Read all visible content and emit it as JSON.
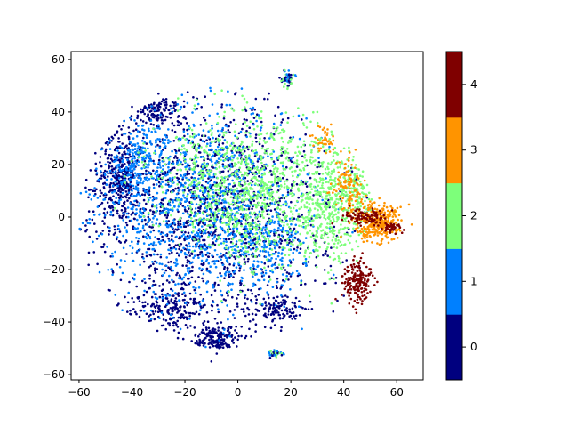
{
  "chart_data": {
    "type": "scatter",
    "title": "",
    "xlabel": "",
    "ylabel": "",
    "xlim": [
      -63,
      70
    ],
    "ylim": [
      -62,
      63
    ],
    "xticks": [
      -60,
      -40,
      -20,
      0,
      20,
      40,
      60
    ],
    "yticks": [
      -60,
      -40,
      -20,
      0,
      20,
      40,
      60
    ],
    "grid": false,
    "legend": "none",
    "colorbar": {
      "type": "discrete",
      "classes": [
        0,
        1,
        2,
        3,
        4
      ],
      "tick_labels": [
        "0",
        "1",
        "2",
        "3",
        "4"
      ],
      "colors": [
        "#00007f",
        "#0080ff",
        "#7dff7a",
        "#ff9400",
        "#7f0000"
      ]
    },
    "series": [
      {
        "class": 0,
        "regions": [
          {
            "center": [
              -10,
              0
            ],
            "radius": [
              45,
              45
            ],
            "weight": 0.55
          },
          {
            "center": [
              -45,
              15
            ],
            "radius": [
              8,
              18
            ],
            "weight": 0.12
          },
          {
            "center": [
              -25,
              -35
            ],
            "radius": [
              15,
              8
            ],
            "weight": 0.08
          },
          {
            "center": [
              -8,
              -47
            ],
            "radius": [
              8,
              6
            ],
            "weight": 0.06
          },
          {
            "center": [
              -30,
              40
            ],
            "radius": [
              10,
              6
            ],
            "weight": 0.05
          },
          {
            "center": [
              15,
              -35
            ],
            "radius": [
              10,
              5
            ],
            "weight": 0.04
          }
        ],
        "samples": [
          [
            -55,
            -1
          ],
          [
            -50,
            25
          ],
          [
            -45,
            30
          ],
          [
            -40,
            42
          ],
          [
            -30,
            47
          ],
          [
            -8,
            -52
          ],
          [
            -10,
            -55
          ],
          [
            -30,
            -38
          ],
          [
            -52,
            10
          ],
          [
            -48,
            -15
          ],
          [
            -35,
            -25
          ],
          [
            0,
            30
          ],
          [
            10,
            45
          ],
          [
            5,
            -20
          ],
          [
            20,
            10
          ],
          [
            18,
            -30
          ],
          [
            28,
            -35
          ],
          [
            36,
            -36
          ],
          [
            40,
            -30
          ],
          [
            25,
            25
          ]
        ]
      },
      {
        "class": 1,
        "regions": [
          {
            "center": [
              -15,
              5
            ],
            "radius": [
              40,
              40
            ],
            "weight": 0.6
          },
          {
            "center": [
              -38,
              20
            ],
            "radius": [
              10,
              14
            ],
            "weight": 0.1
          },
          {
            "center": [
              10,
              -10
            ],
            "radius": [
              15,
              20
            ],
            "weight": 0.1
          }
        ],
        "samples": [
          [
            -50,
            20
          ],
          [
            -40,
            10
          ],
          [
            -42,
            -5
          ],
          [
            -30,
            35
          ],
          [
            -18,
            -25
          ],
          [
            -5,
            15
          ],
          [
            12,
            30
          ],
          [
            15,
            0
          ],
          [
            30,
            10
          ]
        ]
      },
      {
        "class": 2,
        "regions": [
          {
            "center": [
              10,
              10
            ],
            "radius": [
              30,
              30
            ],
            "weight": 0.55
          },
          {
            "center": [
              35,
              5
            ],
            "radius": [
              12,
              22
            ],
            "weight": 0.25
          },
          {
            "center": [
              -10,
              15
            ],
            "radius": [
              25,
              25
            ],
            "weight": 0.15
          },
          {
            "center": [
              45,
              10
            ],
            "radius": [
              5,
              8
            ],
            "weight": 0.05
          }
        ],
        "samples": [
          [
            40,
            10
          ],
          [
            35,
            20
          ],
          [
            25,
            35
          ],
          [
            30,
            40
          ],
          [
            42,
            25
          ],
          [
            45,
            5
          ],
          [
            38,
            -15
          ],
          [
            20,
            -10
          ],
          [
            -5,
            40
          ],
          [
            -25,
            20
          ]
        ]
      },
      {
        "class": 3,
        "regions": [
          {
            "center": [
              52,
              -2
            ],
            "radius": [
              8,
              7
            ],
            "weight": 0.55
          },
          {
            "center": [
              42,
              12
            ],
            "radius": [
              6,
              10
            ],
            "weight": 0.25
          },
          {
            "center": [
              58,
              0
            ],
            "radius": [
              4,
              4
            ],
            "weight": 0.1
          },
          {
            "center": [
              33,
              30
            ],
            "radius": [
              5,
              6
            ],
            "weight": 0.1
          }
        ],
        "samples": [
          [
            55,
            0
          ],
          [
            60,
            -3
          ],
          [
            48,
            -8
          ],
          [
            45,
            15
          ],
          [
            35,
            28
          ]
        ]
      },
      {
        "class": 4,
        "regions": [
          {
            "center": [
              45,
              -25
            ],
            "radius": [
              5,
              8
            ],
            "weight": 0.55
          },
          {
            "center": [
              48,
              0
            ],
            "radius": [
              8,
              3
            ],
            "weight": 0.3
          },
          {
            "center": [
              58,
              -4
            ],
            "radius": [
              4,
              2
            ],
            "weight": 0.15
          }
        ],
        "samples": [
          [
            47,
            -32
          ],
          [
            42,
            -30
          ],
          [
            50,
            -20
          ],
          [
            44,
            -15
          ],
          [
            45,
            3
          ],
          [
            52,
            1
          ],
          [
            62,
            -6
          ]
        ]
      }
    ],
    "islands": [
      {
        "center": [
          19,
          53
        ],
        "radius": [
          3.5,
          3.5
        ],
        "classes": [
          0,
          1,
          2
        ]
      },
      {
        "center": [
          14,
          -52
        ],
        "radius": [
          2.5,
          1.5
        ],
        "classes": [
          0,
          1,
          2
        ]
      }
    ]
  }
}
